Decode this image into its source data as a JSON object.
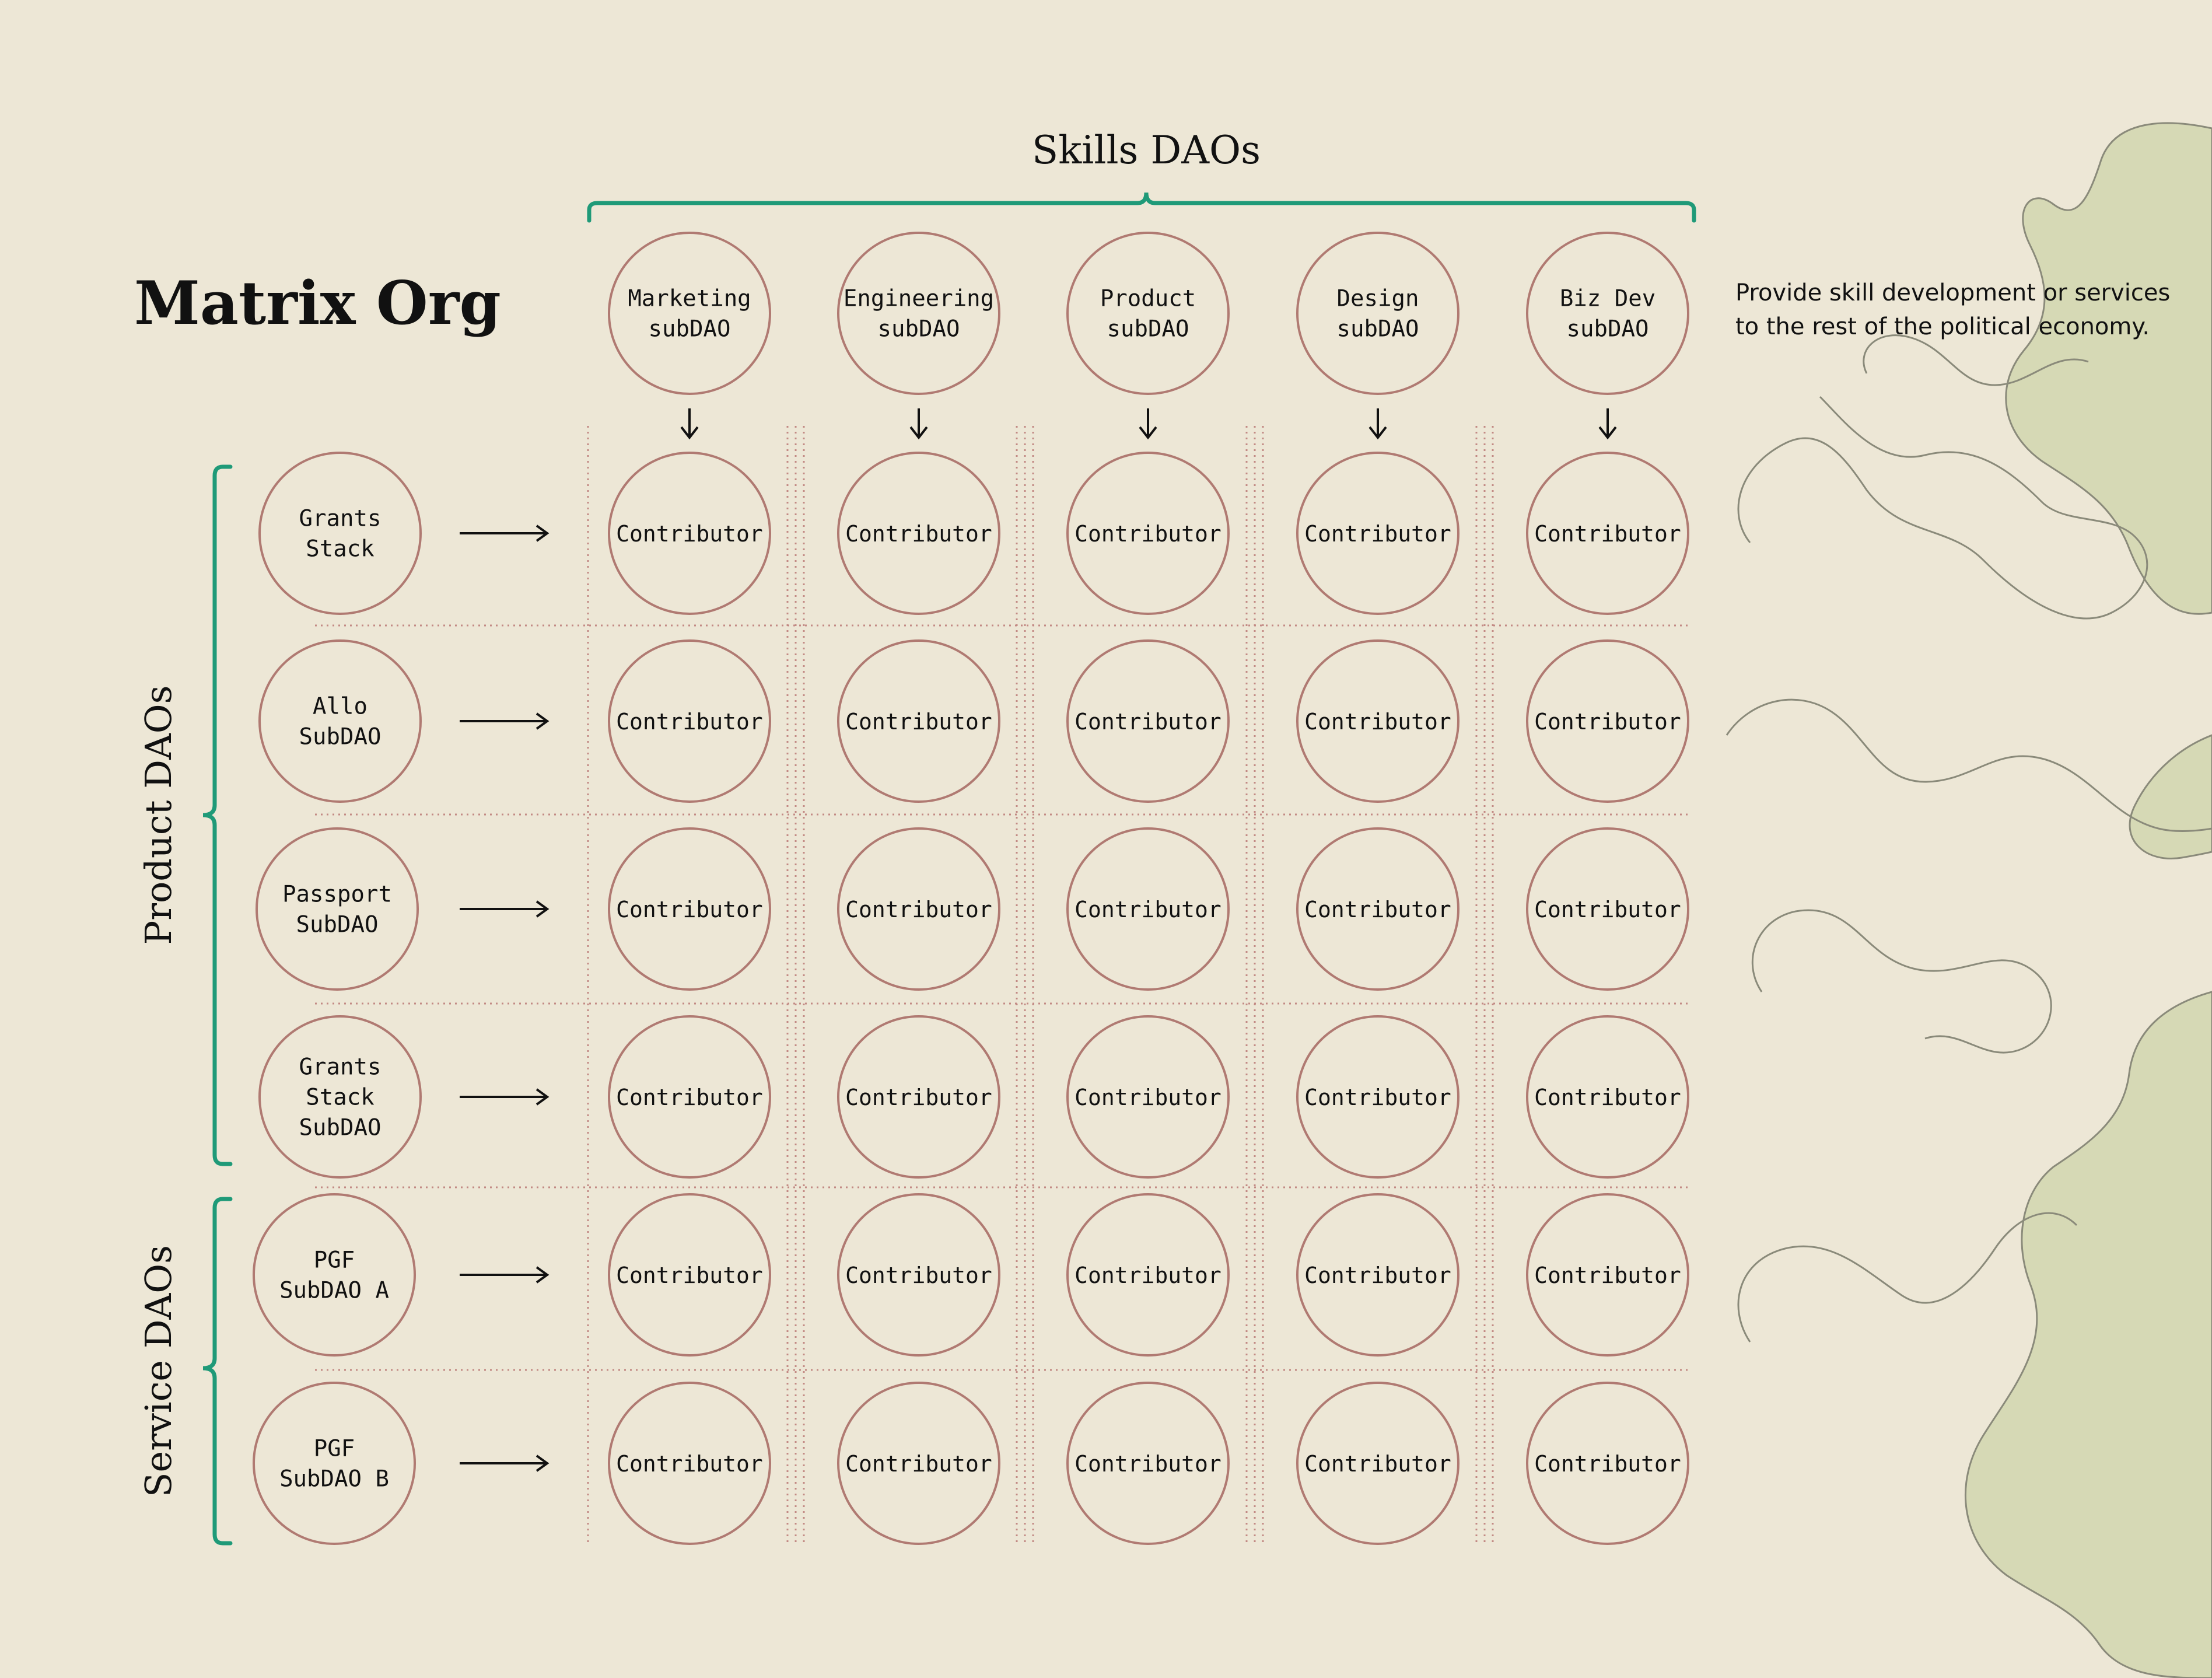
{
  "title": "Matrix Org",
  "skills_header": "Skills DAOs",
  "skills_description": [
    "Provide skill development or services",
    "to the rest of the political economy."
  ],
  "product_group_label": "Product DAOs",
  "service_group_label": "Service DAOs",
  "skills": [
    {
      "id": "marketing",
      "lines": [
        "Marketing",
        "subDAO"
      ]
    },
    {
      "id": "engineering",
      "lines": [
        "Engineering",
        "subDAO"
      ]
    },
    {
      "id": "product",
      "lines": [
        "Product",
        "subDAO"
      ]
    },
    {
      "id": "design",
      "lines": [
        "Design",
        "subDAO"
      ]
    },
    {
      "id": "bizdev",
      "lines": [
        "Biz Dev",
        "subDAO"
      ]
    }
  ],
  "rows": [
    {
      "id": "grants-stack",
      "group": "product",
      "lines": [
        "Grants",
        "Stack"
      ]
    },
    {
      "id": "allo",
      "group": "product",
      "lines": [
        "Allo",
        "SubDAO"
      ]
    },
    {
      "id": "passport",
      "group": "product",
      "lines": [
        "Passport",
        "SubDAO"
      ]
    },
    {
      "id": "grants-stack-subdao",
      "group": "product",
      "lines": [
        "Grants",
        "Stack",
        "SubDAO"
      ]
    },
    {
      "id": "pgf-a",
      "group": "service",
      "lines": [
        "PGF",
        "SubDAO A"
      ]
    },
    {
      "id": "pgf-b",
      "group": "service",
      "lines": [
        "PGF",
        "SubDAO B"
      ]
    }
  ],
  "cell_label": "Contributor",
  "colors": {
    "background": "#ede7d6",
    "circle_stroke": "#b07a72",
    "grid_dots": "#c28a84",
    "bracket": "#1f9a78",
    "text": "#111111",
    "blob_fill": "#d6d9b5",
    "blob_stroke": "#8a8a7a"
  }
}
